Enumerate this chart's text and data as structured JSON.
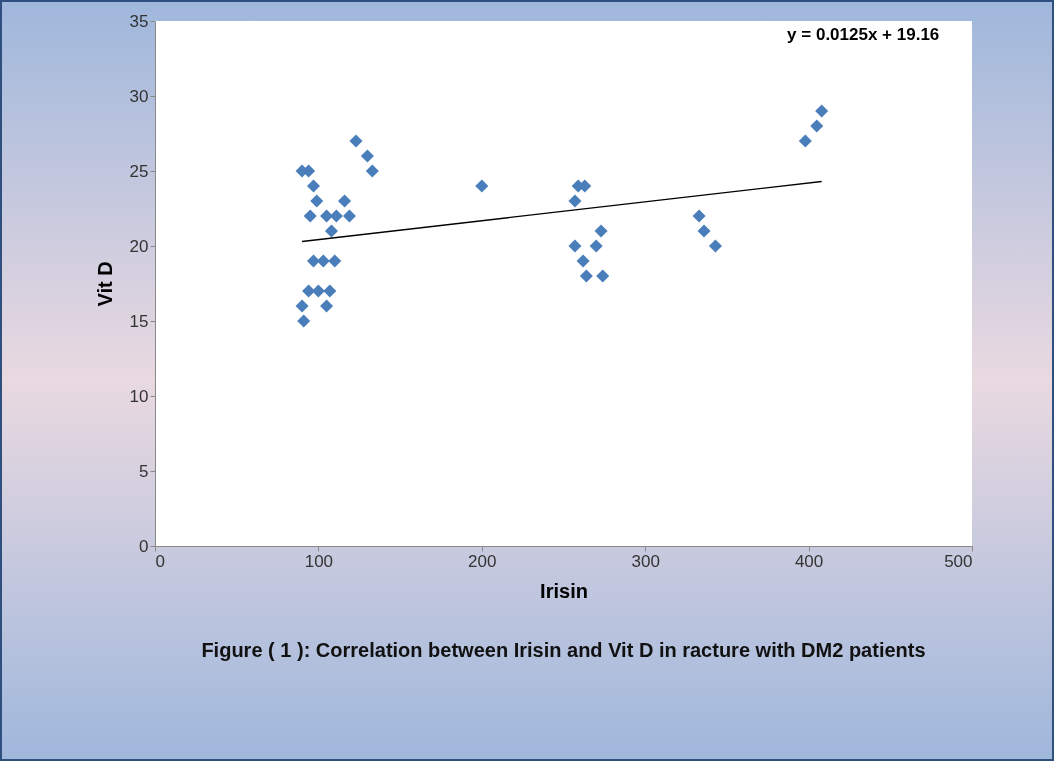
{
  "chart_data": {
    "type": "scatter",
    "xlabel": "Irisin",
    "ylabel": "Vit D",
    "xlim": [
      0,
      500
    ],
    "ylim": [
      0,
      35
    ],
    "xticks": [
      0,
      100,
      200,
      300,
      400,
      500
    ],
    "yticks": [
      0,
      5,
      10,
      15,
      20,
      25,
      30,
      35
    ],
    "grid": false,
    "marker": "diamond",
    "series": [
      {
        "color": "#4a7ebb",
        "x": [
          90,
          94,
          97,
          99,
          95,
          105,
          108,
          111,
          116,
          119,
          123,
          130,
          133,
          97,
          103,
          110,
          94,
          100,
          107,
          90,
          105,
          91,
          257,
          259,
          263,
          200,
          257,
          262,
          264,
          270,
          273,
          274,
          333,
          336,
          343,
          398,
          405,
          408
        ],
        "values": [
          25,
          25,
          24,
          23,
          22,
          22,
          21,
          22,
          23,
          22,
          27,
          26,
          25,
          19,
          19,
          19,
          17,
          17,
          17,
          16,
          16,
          15,
          23,
          24,
          24,
          24,
          20,
          19,
          18,
          20,
          21,
          18,
          22,
          21,
          20,
          27,
          28,
          29
        ]
      },
      {
        "type": "line",
        "color": "#000000",
        "marker": "none",
        "x": [
          90,
          408
        ],
        "values": [
          20.3,
          24.3
        ]
      }
    ],
    "annotations": [
      "y = 0.0125x + 19.16",
      "Figure ( 1 ): Correlation between Irisin and  Vit D in racture with DM2 patients"
    ]
  }
}
